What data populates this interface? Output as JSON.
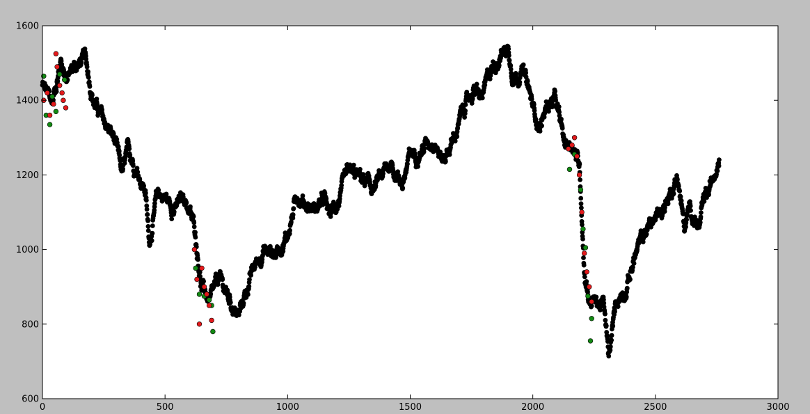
{
  "chart_data": {
    "type": "scatter",
    "title": "",
    "xlabel": "",
    "ylabel": "",
    "xlim": [
      0,
      3000
    ],
    "ylim": [
      600,
      1600
    ],
    "xticks": [
      0,
      500,
      1000,
      1500,
      2000,
      2500,
      3000
    ],
    "yticks": [
      600,
      800,
      1000,
      1200,
      1400,
      1600
    ],
    "xtick_labels": [
      "0",
      "500",
      "1000",
      "1500",
      "2000",
      "2500",
      "3000"
    ],
    "ytick_labels": [
      "600",
      "800",
      "1000",
      "1200",
      "1400",
      "1600"
    ],
    "grid": false,
    "legend": "none",
    "colors": {
      "figure_background": "#bfbfbf",
      "axes_background": "#ffffff",
      "default_points": "#000000",
      "red_points": "#e31a1c",
      "green_points": "#138a13"
    },
    "path": {
      "x": [
        0,
        40,
        75,
        100,
        130,
        175,
        210,
        250,
        290,
        325,
        350,
        385,
        420,
        435,
        470,
        500,
        540,
        580,
        620,
        650,
        685,
        700,
        720,
        760,
        800,
        850,
        900,
        950,
        1000,
        1040,
        1080,
        1110,
        1150,
        1170,
        1200,
        1250,
        1300,
        1350,
        1420,
        1470,
        1500,
        1560,
        1600,
        1630,
        1680,
        1720,
        1760,
        1790,
        1830,
        1870,
        1900,
        1920,
        1960,
        1985,
        2000,
        2030,
        2060,
        2090,
        2130,
        2160,
        2190,
        2200,
        2210,
        2230,
        2260,
        2290,
        2310,
        2340,
        2380,
        2420,
        2470,
        2520,
        2560,
        2590,
        2620,
        2640,
        2680,
        2700,
        2720,
        2760
      ],
      "y": [
        1440,
        1390,
        1510,
        1460,
        1490,
        1510,
        1400,
        1340,
        1300,
        1200,
        1260,
        1220,
        1160,
        1020,
        1150,
        1140,
        1110,
        1140,
        1060,
        900,
        860,
        880,
        920,
        870,
        820,
        930,
        1000,
        990,
        1040,
        1150,
        1120,
        1110,
        1130,
        1090,
        1120,
        1200,
        1190,
        1160,
        1230,
        1180,
        1250,
        1280,
        1300,
        1240,
        1300,
        1380,
        1430,
        1400,
        1480,
        1530,
        1540,
        1470,
        1480,
        1420,
        1380,
        1330,
        1390,
        1400,
        1280,
        1290,
        1230,
        1100,
        950,
        870,
        860,
        850,
        700,
        860,
        900,
        990,
        1060,
        1100,
        1150,
        1200,
        1050,
        1110,
        1060,
        1130,
        1150,
        1260
      ],
      "noise": 22,
      "count": 2760
    },
    "series": [
      {
        "color": "green",
        "x": [
          5,
          15,
          30,
          40,
          55,
          70,
          90,
          625,
          640,
          660,
          680,
          690,
          695,
          2150,
          2170,
          2195,
          2205,
          2215,
          2225,
          2235,
          2240
        ],
        "y": [
          1465,
          1360,
          1335,
          1410,
          1370,
          1470,
          1455,
          950,
          880,
          875,
          865,
          850,
          780,
          1215,
          1255,
          1160,
          1055,
          1005,
          875,
          755,
          815
        ]
      },
      {
        "color": "red",
        "x": [
          5,
          20,
          30,
          45,
          55,
          60,
          70,
          80,
          85,
          95,
          620,
          630,
          640,
          650,
          660,
          670,
          680,
          690,
          2145,
          2160,
          2170,
          2180,
          2190,
          2200,
          2210,
          2220,
          2230,
          2240
        ],
        "y": [
          1400,
          1420,
          1360,
          1390,
          1525,
          1490,
          1440,
          1420,
          1400,
          1380,
          1000,
          920,
          800,
          950,
          900,
          880,
          850,
          810,
          1270,
          1280,
          1300,
          1250,
          1200,
          1100,
          990,
          940,
          900,
          860
        ]
      }
    ]
  }
}
